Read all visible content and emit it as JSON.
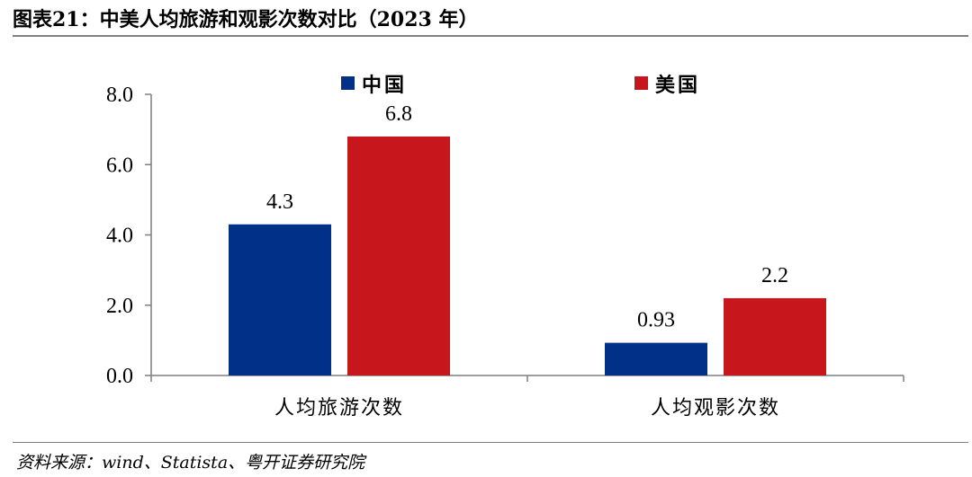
{
  "figure": {
    "title": "图表21：中美人均旅游和观影次数对比（2023 年）",
    "source": "资料来源：wind、Statista、粤开证券研究院"
  },
  "chart_data": {
    "type": "bar",
    "categories": [
      "人均旅游次数",
      "人均观影次数"
    ],
    "series": [
      {
        "name": "中国",
        "color": "#003087",
        "values": [
          4.3,
          0.93
        ],
        "labels": [
          "4.3",
          "0.93"
        ]
      },
      {
        "name": "美国",
        "color": "#c8161d",
        "values": [
          6.8,
          2.2
        ],
        "labels": [
          "6.8",
          "2.2"
        ]
      }
    ],
    "ylim": [
      0,
      8
    ],
    "yticks": [
      "0.0",
      "2.0",
      "4.0",
      "6.0",
      "8.0"
    ],
    "grid": false,
    "legend_position": "top"
  }
}
